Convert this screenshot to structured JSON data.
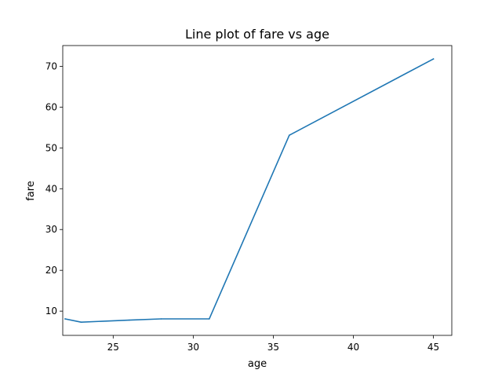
{
  "chart_data": {
    "type": "line",
    "title": "Line plot of fare vs age",
    "xlabel": "age",
    "ylabel": "fare",
    "xlim": [
      21.85,
      46.15
    ],
    "ylim": [
      4.06,
      75.08
    ],
    "xticks": [
      25,
      30,
      35,
      40,
      45
    ],
    "yticks": [
      10,
      20,
      30,
      40,
      50,
      60,
      70
    ],
    "grid": false,
    "legend": "none",
    "series": [
      {
        "color": "#1f77b4",
        "points": [
          {
            "x": 22,
            "y": 8.1
          },
          {
            "x": 23,
            "y": 7.3
          },
          {
            "x": 26,
            "y": 7.8
          },
          {
            "x": 28,
            "y": 8.1
          },
          {
            "x": 31,
            "y": 8.1
          },
          {
            "x": 36,
            "y": 53.1
          },
          {
            "x": 45,
            "y": 71.8
          }
        ]
      }
    ]
  }
}
